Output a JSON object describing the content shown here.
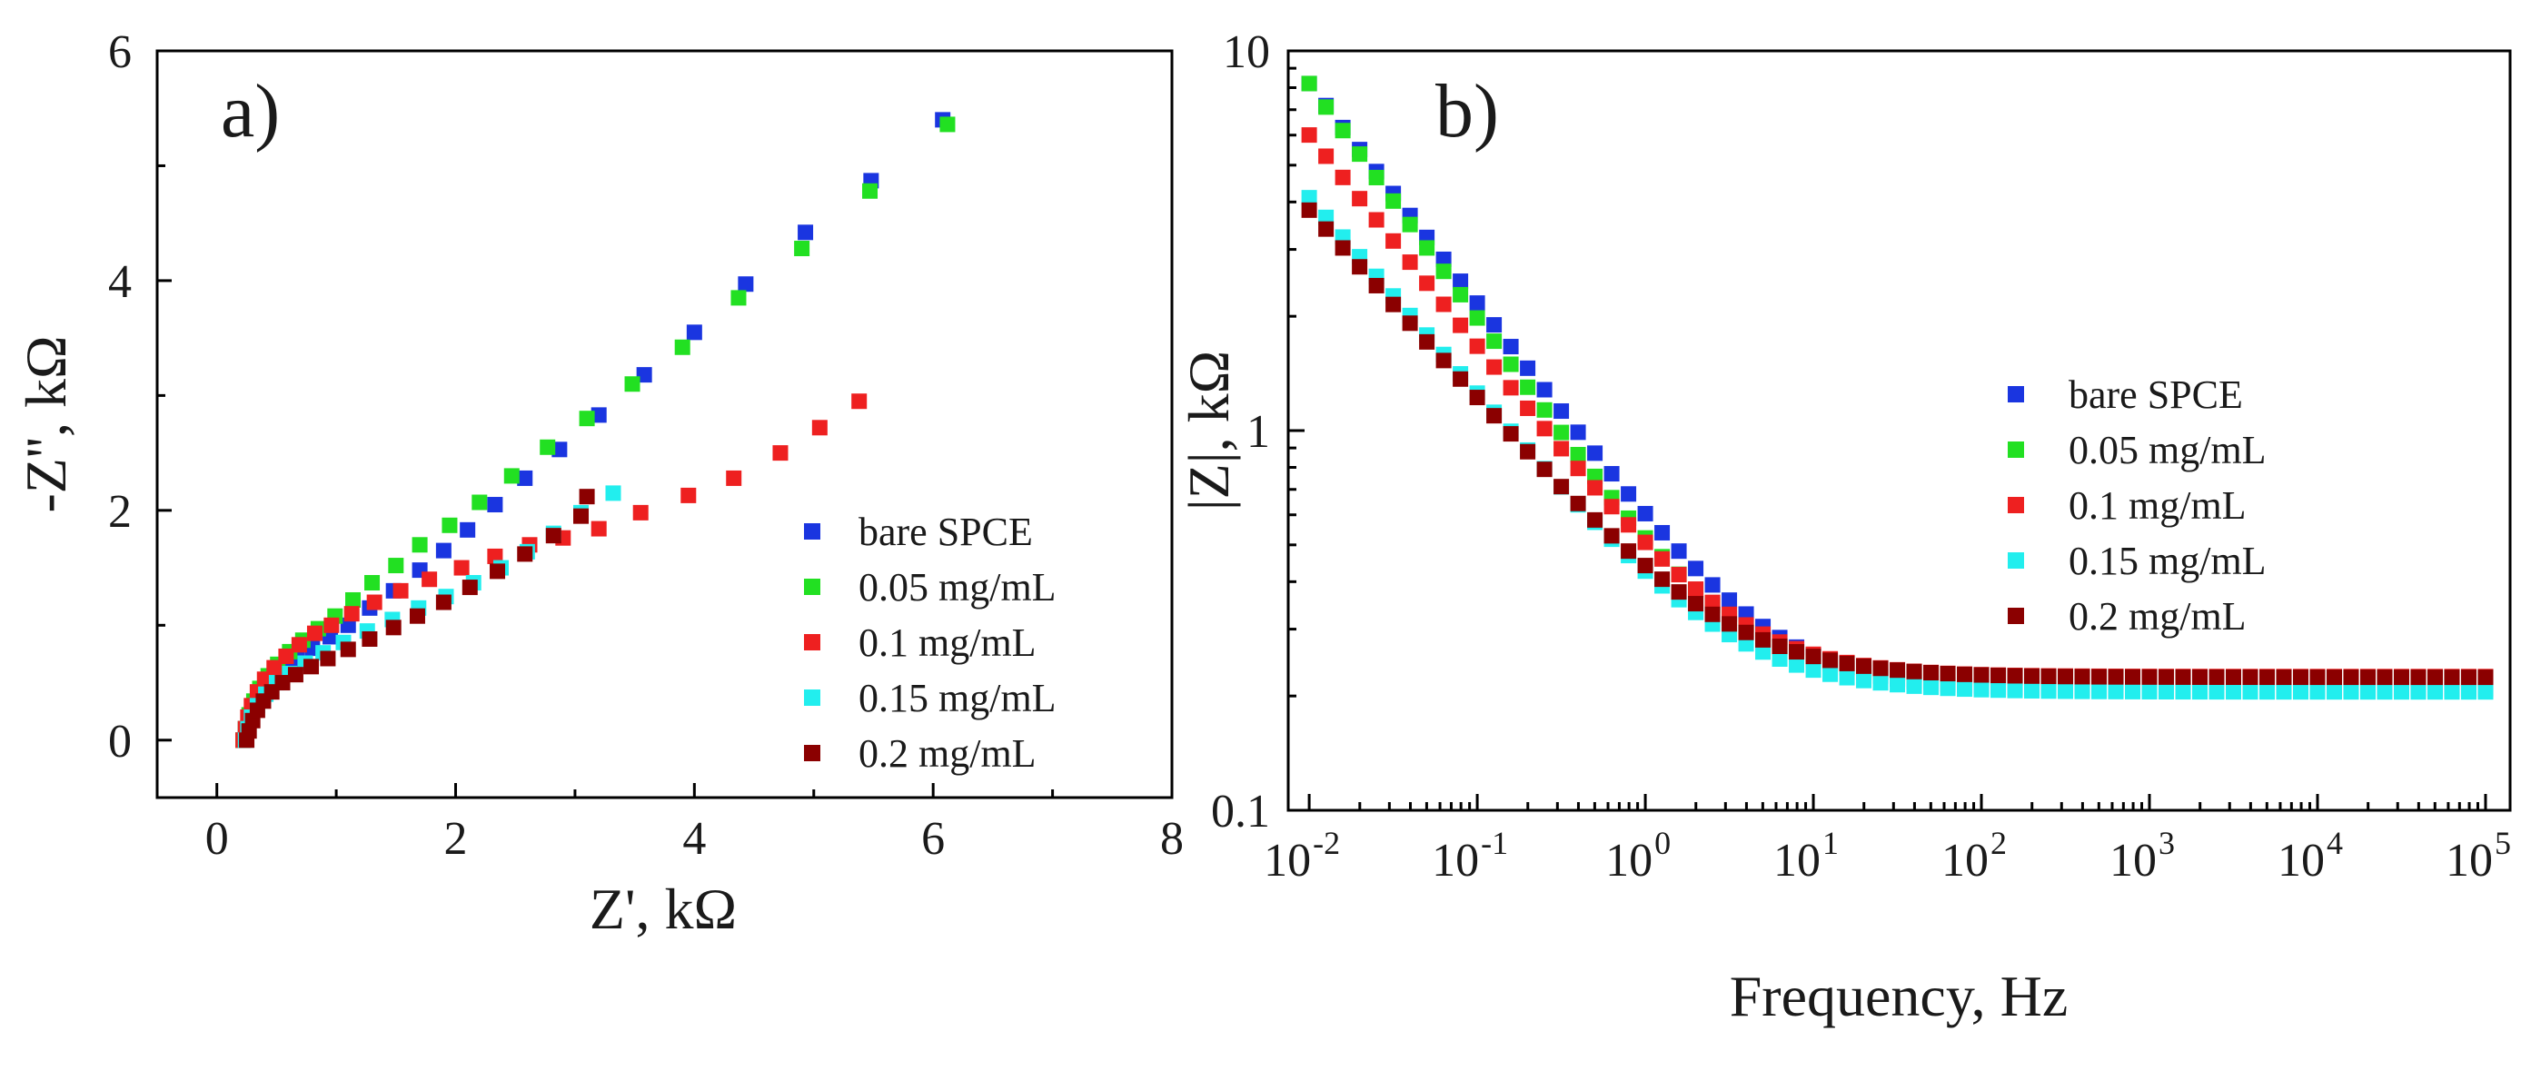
{
  "chart_data": [
    {
      "type": "scatter",
      "panel_label": "a)",
      "title": "",
      "xlabel": "Z', kΩ",
      "ylabel": "-Z'', kΩ",
      "xlim": [
        -0.5,
        8
      ],
      "ylim": [
        -0.5,
        6
      ],
      "xticks": [
        0,
        2,
        4,
        6,
        8
      ],
      "xtick_labels": [
        "0",
        "2",
        "4",
        "6",
        "8"
      ],
      "yticks": [
        0,
        2,
        4,
        6
      ],
      "ytick_labels": [
        "0",
        "2",
        "4",
        "6"
      ],
      "legend": "bottom-right",
      "series": [
        {
          "name": "bare SPCE",
          "color": "#1a35e0",
          "points": [
            [
              0.22,
              0.0
            ],
            [
              0.24,
              0.1
            ],
            [
              0.27,
              0.2
            ],
            [
              0.32,
              0.3
            ],
            [
              0.38,
              0.4
            ],
            [
              0.45,
              0.5
            ],
            [
              0.55,
              0.6
            ],
            [
              0.67,
              0.7
            ],
            [
              0.8,
              0.8
            ],
            [
              0.95,
              0.9
            ],
            [
              1.1,
              1.0
            ],
            [
              1.28,
              1.15
            ],
            [
              1.48,
              1.3
            ],
            [
              1.7,
              1.48
            ],
            [
              1.9,
              1.65
            ],
            [
              2.1,
              1.83
            ],
            [
              2.33,
              2.05
            ],
            [
              2.58,
              2.28
            ],
            [
              2.87,
              2.53
            ],
            [
              3.2,
              2.83
            ],
            [
              3.58,
              3.18
            ],
            [
              4.0,
              3.55
            ],
            [
              4.43,
              3.97
            ],
            [
              4.93,
              4.42
            ],
            [
              5.48,
              4.87
            ],
            [
              6.08,
              5.4
            ]
          ]
        },
        {
          "name": "0.05 mg/mL",
          "color": "#22e022",
          "points": [
            [
              0.22,
              0.0
            ],
            [
              0.24,
              0.1
            ],
            [
              0.27,
              0.22
            ],
            [
              0.31,
              0.34
            ],
            [
              0.36,
              0.45
            ],
            [
              0.43,
              0.56
            ],
            [
              0.51,
              0.66
            ],
            [
              0.61,
              0.77
            ],
            [
              0.72,
              0.87
            ],
            [
              0.85,
              0.97
            ],
            [
              0.99,
              1.08
            ],
            [
              1.14,
              1.22
            ],
            [
              1.3,
              1.37
            ],
            [
              1.5,
              1.52
            ],
            [
              1.7,
              1.7
            ],
            [
              1.95,
              1.87
            ],
            [
              2.2,
              2.07
            ],
            [
              2.47,
              2.3
            ],
            [
              2.77,
              2.55
            ],
            [
              3.1,
              2.8
            ],
            [
              3.48,
              3.1
            ],
            [
              3.9,
              3.42
            ],
            [
              4.37,
              3.85
            ],
            [
              4.9,
              4.28
            ],
            [
              5.47,
              4.78
            ],
            [
              6.12,
              5.36
            ]
          ]
        },
        {
          "name": "0.1 mg/mL",
          "color": "#ee2020",
          "points": [
            [
              0.22,
              0.0
            ],
            [
              0.24,
              0.1
            ],
            [
              0.26,
              0.2
            ],
            [
              0.29,
              0.3
            ],
            [
              0.34,
              0.42
            ],
            [
              0.4,
              0.53
            ],
            [
              0.48,
              0.63
            ],
            [
              0.58,
              0.73
            ],
            [
              0.69,
              0.83
            ],
            [
              0.82,
              0.93
            ],
            [
              0.96,
              1.0
            ],
            [
              1.13,
              1.1
            ],
            [
              1.32,
              1.2
            ],
            [
              1.54,
              1.3
            ],
            [
              1.78,
              1.4
            ],
            [
              2.05,
              1.5
            ],
            [
              2.33,
              1.6
            ],
            [
              2.62,
              1.7
            ],
            [
              2.9,
              1.76
            ],
            [
              3.2,
              1.84
            ],
            [
              3.55,
              1.98
            ],
            [
              3.95,
              2.13
            ],
            [
              4.33,
              2.28
            ],
            [
              4.72,
              2.5
            ],
            [
              5.05,
              2.72
            ],
            [
              5.38,
              2.95
            ]
          ]
        },
        {
          "name": "0.15 mg/mL",
          "color": "#22eeee",
          "points": [
            [
              0.24,
              0.0
            ],
            [
              0.26,
              0.1
            ],
            [
              0.29,
              0.2
            ],
            [
              0.34,
              0.3
            ],
            [
              0.41,
              0.4
            ],
            [
              0.5,
              0.5
            ],
            [
              0.61,
              0.58
            ],
            [
              0.74,
              0.67
            ],
            [
              0.89,
              0.76
            ],
            [
              1.06,
              0.85
            ],
            [
              1.26,
              0.95
            ],
            [
              1.47,
              1.05
            ],
            [
              1.69,
              1.15
            ],
            [
              1.92,
              1.25
            ],
            [
              2.15,
              1.37
            ],
            [
              2.38,
              1.5
            ],
            [
              2.6,
              1.64
            ],
            [
              2.82,
              1.8
            ],
            [
              3.05,
              1.98
            ],
            [
              3.32,
              2.15
            ]
          ]
        },
        {
          "name": "0.2 mg/mL",
          "color": "#8b0000",
          "points": [
            [
              0.25,
              0.0
            ],
            [
              0.27,
              0.08
            ],
            [
              0.3,
              0.17
            ],
            [
              0.34,
              0.26
            ],
            [
              0.39,
              0.34
            ],
            [
              0.46,
              0.42
            ],
            [
              0.55,
              0.5
            ],
            [
              0.66,
              0.57
            ],
            [
              0.79,
              0.64
            ],
            [
              0.93,
              0.71
            ],
            [
              1.1,
              0.79
            ],
            [
              1.28,
              0.88
            ],
            [
              1.48,
              0.98
            ],
            [
              1.68,
              1.08
            ],
            [
              1.9,
              1.2
            ],
            [
              2.12,
              1.33
            ],
            [
              2.35,
              1.47
            ],
            [
              2.58,
              1.62
            ],
            [
              2.82,
              1.78
            ],
            [
              3.05,
              1.95
            ],
            [
              3.1,
              2.12
            ]
          ]
        }
      ]
    },
    {
      "type": "scatter",
      "panel_label": "b)",
      "title": "",
      "xlabel": "Frequency, Hz",
      "ylabel": "|Z|, kΩ",
      "xscale": "log",
      "yscale": "log",
      "xlim": [
        0.0075,
        140000
      ],
      "ylim": [
        0.1,
        10
      ],
      "xtick_exponents": [
        -2,
        -1,
        0,
        1,
        2,
        3,
        4,
        5
      ],
      "xtick_base": "10",
      "yticks": [
        0.1,
        1,
        10
      ],
      "ytick_labels": [
        "0.1",
        "1",
        "10"
      ],
      "legend": "right",
      "series": [
        {
          "name": "bare SPCE",
          "color": "#1a35e0",
          "low_freq_kohm": 8.2,
          "slope": -0.58,
          "plateau_kohm": 0.208
        },
        {
          "name": "0.05 mg/mL",
          "color": "#22e022",
          "low_freq_kohm": 8.2,
          "slope": -0.62,
          "plateau_kohm": 0.222
        },
        {
          "name": "0.1 mg/mL",
          "color": "#ee2020",
          "low_freq_kohm": 6.0,
          "slope": -0.56,
          "plateau_kohm": 0.225
        },
        {
          "name": "0.15 mg/mL",
          "color": "#22eeee",
          "low_freq_kohm": 4.1,
          "slope": -0.52,
          "plateau_kohm": 0.205
        },
        {
          "name": "0.2 mg/mL",
          "color": "#8b0000",
          "low_freq_kohm": 3.8,
          "slope": -0.5,
          "plateau_kohm": 0.224
        }
      ]
    }
  ]
}
